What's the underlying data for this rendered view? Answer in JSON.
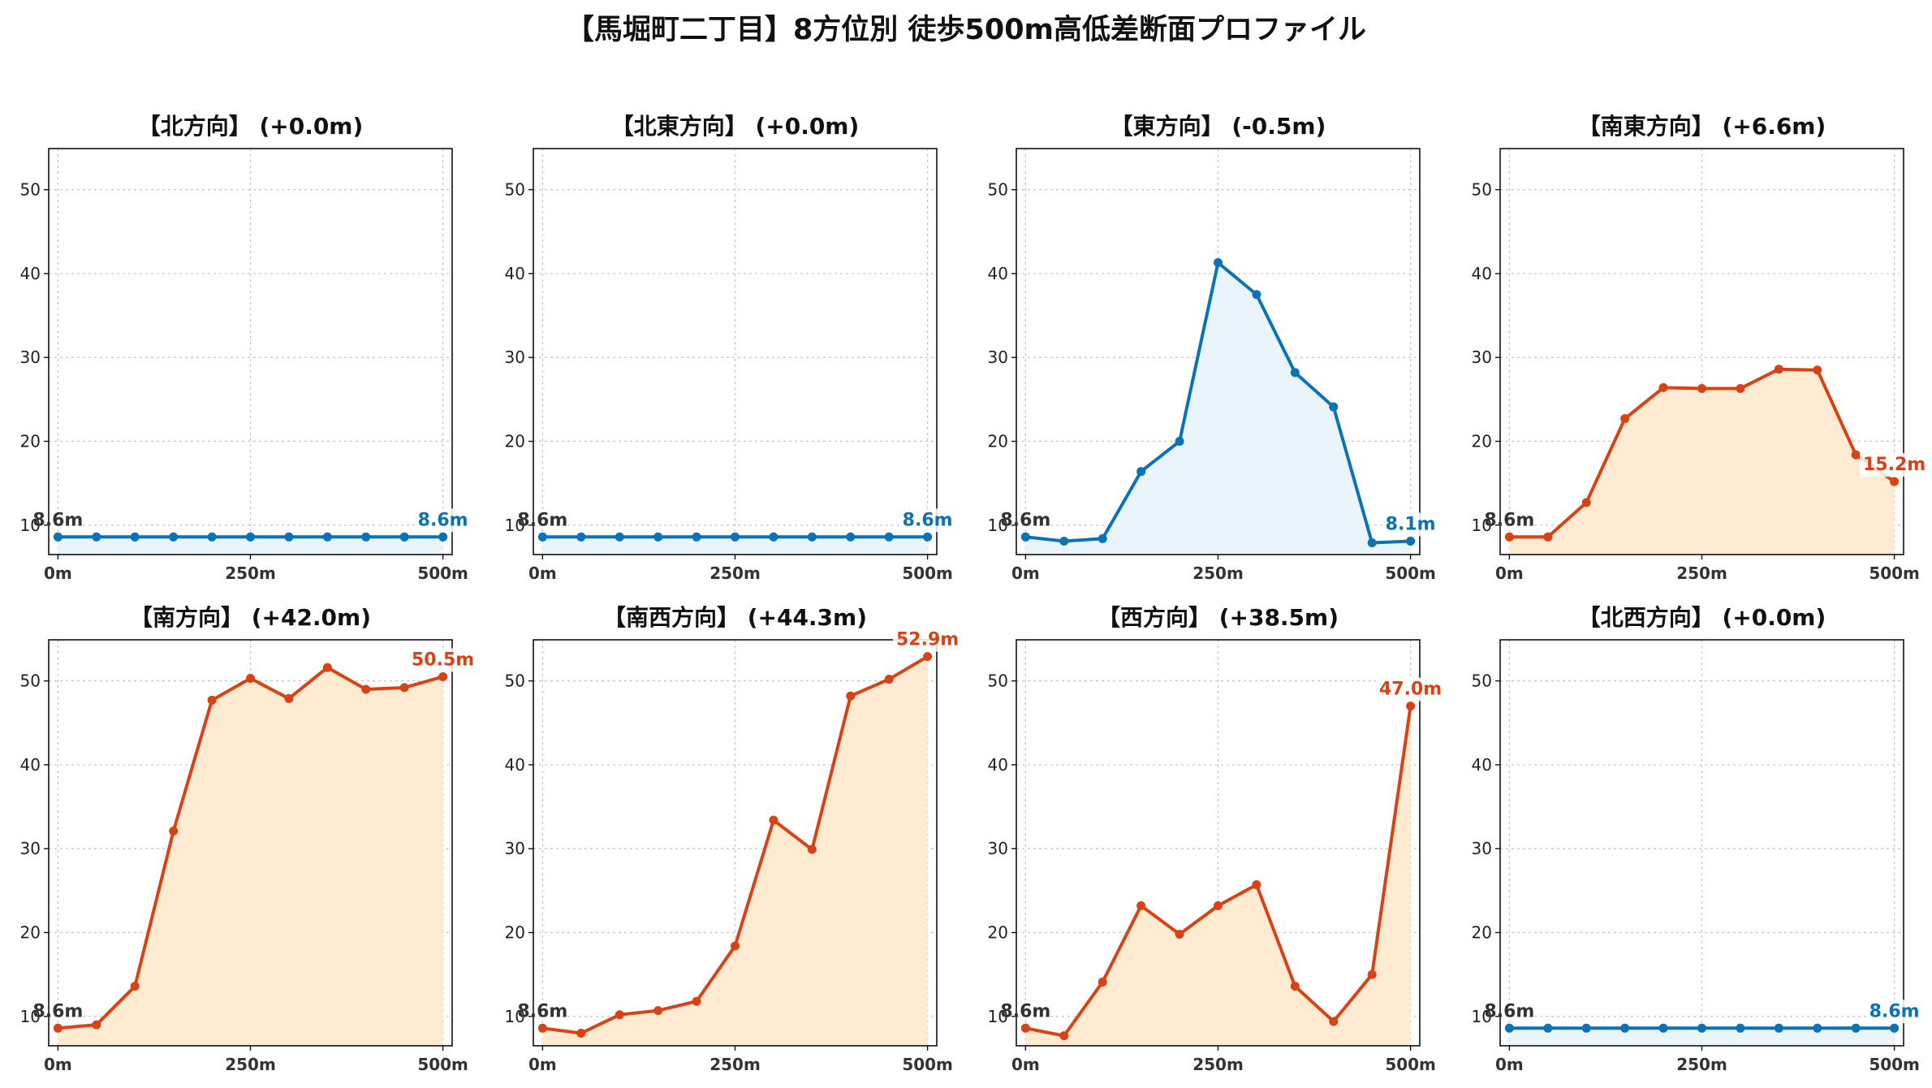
{
  "title": "【馬堀町二丁目】8方位別 徒歩500m高低差断面プロファイル",
  "colors": {
    "rise_line": "#d94214",
    "rise_fill": "#feebd2",
    "fall_line": "#0a72b5",
    "fall_fill": "#e9f5fb",
    "start_label": "#333333"
  },
  "chart_data": [
    {
      "type": "line",
      "title": "【北方向】 (+0.0m)",
      "x": [
        0,
        50,
        100,
        150,
        200,
        250,
        300,
        350,
        400,
        450,
        500
      ],
      "y": [
        8.6,
        8.6,
        8.6,
        8.6,
        8.6,
        8.6,
        8.6,
        8.6,
        8.6,
        8.6,
        8.6
      ],
      "start_label": "8.6m",
      "end_label": "8.6m",
      "trend": "fall",
      "xticks": [
        "0m",
        "250m",
        "500m"
      ],
      "yticks": [
        "10",
        "20",
        "30",
        "40",
        "50"
      ],
      "ylim": [
        6.5,
        54.9
      ],
      "xlim": [
        -12,
        512
      ],
      "grid": true
    },
    {
      "type": "line",
      "title": "【北東方向】 (+0.0m)",
      "x": [
        0,
        50,
        100,
        150,
        200,
        250,
        300,
        350,
        400,
        450,
        500
      ],
      "y": [
        8.6,
        8.6,
        8.6,
        8.6,
        8.6,
        8.6,
        8.6,
        8.6,
        8.6,
        8.6,
        8.6
      ],
      "start_label": "8.6m",
      "end_label": "8.6m",
      "trend": "fall",
      "xticks": [
        "0m",
        "250m",
        "500m"
      ],
      "yticks": [
        "10",
        "20",
        "30",
        "40",
        "50"
      ],
      "ylim": [
        6.5,
        54.9
      ],
      "xlim": [
        -12,
        512
      ],
      "grid": true
    },
    {
      "type": "line",
      "title": "【東方向】 (-0.5m)",
      "x": [
        0,
        50,
        100,
        150,
        200,
        250,
        300,
        350,
        400,
        450,
        500
      ],
      "y": [
        8.6,
        8.1,
        8.4,
        16.4,
        20.0,
        41.3,
        37.5,
        28.2,
        24.1,
        7.9,
        8.1
      ],
      "start_label": "8.6m",
      "end_label": "8.1m",
      "trend": "fall",
      "xticks": [
        "0m",
        "250m",
        "500m"
      ],
      "yticks": [
        "10",
        "20",
        "30",
        "40",
        "50"
      ],
      "ylim": [
        6.5,
        54.9
      ],
      "xlim": [
        -12,
        512
      ],
      "grid": true
    },
    {
      "type": "line",
      "title": "【南東方向】 (+6.6m)",
      "x": [
        0,
        50,
        100,
        150,
        200,
        250,
        300,
        350,
        400,
        450,
        500
      ],
      "y": [
        8.6,
        8.6,
        12.7,
        22.7,
        26.4,
        26.3,
        26.3,
        28.6,
        28.5,
        18.4,
        15.2
      ],
      "start_label": "8.6m",
      "end_label": "15.2m",
      "trend": "rise",
      "xticks": [
        "0m",
        "250m",
        "500m"
      ],
      "yticks": [
        "10",
        "20",
        "30",
        "40",
        "50"
      ],
      "ylim": [
        6.5,
        54.9
      ],
      "xlim": [
        -12,
        512
      ],
      "grid": true
    },
    {
      "type": "line",
      "title": "【南方向】 (+42.0m)",
      "x": [
        0,
        50,
        100,
        150,
        200,
        250,
        300,
        350,
        400,
        450,
        500
      ],
      "y": [
        8.6,
        9.0,
        13.6,
        32.1,
        47.7,
        50.3,
        47.9,
        51.6,
        49.0,
        49.2,
        50.5
      ],
      "start_label": "8.6m",
      "end_label": "50.5m",
      "trend": "rise",
      "xticks": [
        "0m",
        "250m",
        "500m"
      ],
      "yticks": [
        "10",
        "20",
        "30",
        "40",
        "50"
      ],
      "ylim": [
        6.5,
        54.9
      ],
      "xlim": [
        -12,
        512
      ],
      "grid": true
    },
    {
      "type": "line",
      "title": "【南西方向】 (+44.3m)",
      "x": [
        0,
        50,
        100,
        150,
        200,
        250,
        300,
        350,
        400,
        450,
        500
      ],
      "y": [
        8.6,
        8.0,
        10.2,
        10.7,
        11.8,
        18.4,
        33.4,
        29.9,
        48.2,
        50.2,
        52.9
      ],
      "start_label": "8.6m",
      "end_label": "52.9m",
      "trend": "rise",
      "xticks": [
        "0m",
        "250m",
        "500m"
      ],
      "yticks": [
        "10",
        "20",
        "30",
        "40",
        "50"
      ],
      "ylim": [
        6.5,
        54.9
      ],
      "xlim": [
        -12,
        512
      ],
      "grid": true
    },
    {
      "type": "line",
      "title": "【西方向】 (+38.5m)",
      "x": [
        0,
        50,
        100,
        150,
        200,
        250,
        300,
        350,
        400,
        450,
        500
      ],
      "y": [
        8.6,
        7.7,
        14.1,
        23.2,
        19.8,
        23.2,
        25.7,
        13.6,
        9.4,
        15.0,
        47.0
      ],
      "start_label": "8.6m",
      "end_label": "47.0m",
      "trend": "rise",
      "xticks": [
        "0m",
        "250m",
        "500m"
      ],
      "yticks": [
        "10",
        "20",
        "30",
        "40",
        "50"
      ],
      "ylim": [
        6.5,
        54.9
      ],
      "xlim": [
        -12,
        512
      ],
      "grid": true
    },
    {
      "type": "line",
      "title": "【北西方向】 (+0.0m)",
      "x": [
        0,
        50,
        100,
        150,
        200,
        250,
        300,
        350,
        400,
        450,
        500
      ],
      "y": [
        8.6,
        8.6,
        8.6,
        8.6,
        8.6,
        8.6,
        8.6,
        8.6,
        8.6,
        8.6,
        8.6
      ],
      "start_label": "8.6m",
      "end_label": "8.6m",
      "trend": "fall",
      "xticks": [
        "0m",
        "250m",
        "500m"
      ],
      "yticks": [
        "10",
        "20",
        "30",
        "40",
        "50"
      ],
      "ylim": [
        6.5,
        54.9
      ],
      "xlim": [
        -12,
        512
      ],
      "grid": true
    }
  ]
}
